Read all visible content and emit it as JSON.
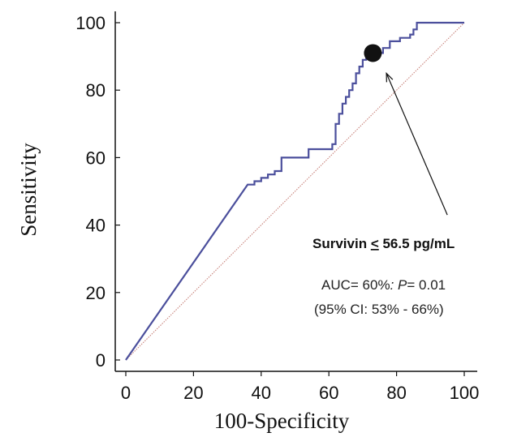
{
  "chart_data": {
    "type": "line",
    "xlabel": "100-Specificity",
    "ylabel": "Sensitivity",
    "xlim": [
      0,
      100
    ],
    "ylim": [
      0,
      100
    ],
    "x_ticks": [
      "0",
      "20",
      "40",
      "60",
      "80",
      "100"
    ],
    "y_ticks": [
      "0",
      "20",
      "40",
      "60",
      "80",
      "100"
    ],
    "grid": false,
    "series": [
      {
        "color": "#4b4f9c",
        "x": [
          0,
          36,
          38,
          38,
          40,
          40,
          42,
          42,
          44,
          44,
          46,
          46,
          54,
          54,
          61,
          61,
          62,
          62,
          63,
          63,
          64,
          64,
          65,
          65,
          66,
          66,
          67,
          67,
          68,
          68,
          69,
          69,
          70,
          70,
          71,
          71,
          72,
          72,
          73,
          73,
          74,
          74,
          75,
          75,
          76,
          76,
          78,
          78,
          81,
          81,
          84,
          84,
          85,
          85,
          86,
          86,
          100
        ],
        "y": [
          0,
          52,
          52,
          53,
          53,
          54,
          54,
          55,
          55,
          56,
          56,
          60,
          60,
          62.5,
          62.5,
          64,
          64,
          70,
          70,
          73,
          73,
          76,
          76,
          78,
          78,
          80,
          80,
          82,
          82,
          85,
          85,
          87,
          87,
          89,
          89,
          90.5,
          90.5,
          91.5,
          91.5,
          91,
          91,
          92,
          92,
          91,
          91,
          92.5,
          92.5,
          94.5,
          94.5,
          95.5,
          95.5,
          96.5,
          96.5,
          98,
          98,
          100,
          100
        ]
      },
      {
        "color": "#c8827a",
        "style": "dotted",
        "x": [
          0,
          100
        ],
        "y": [
          0,
          100
        ]
      }
    ],
    "annotations": {
      "cutoff_point": {
        "x": 73,
        "y": 91
      },
      "arrow_tip": {
        "x": 77,
        "y": 85
      },
      "arrow_tail": {
        "x": 95,
        "y": 43
      },
      "label": "Survivin ≤ 56.5 pg/mL",
      "label_prefix": "Survivin ",
      "label_leq": "<",
      "label_suffix": " 56.5 pg/mL",
      "auc_prefix": "AUC= 60%",
      "auc_sep": ": ",
      "p_letter": "P",
      "p_value": "= 0.01",
      "ci": "(95% CI: 53% - 66%)"
    }
  }
}
